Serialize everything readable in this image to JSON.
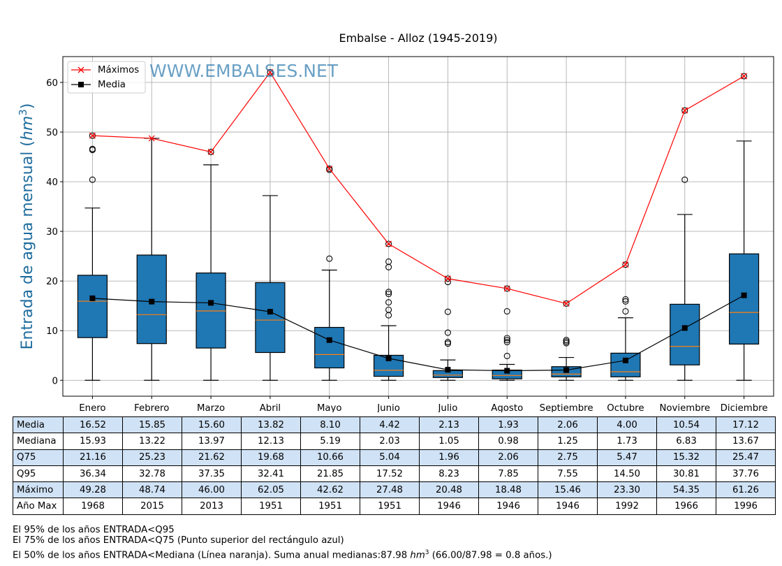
{
  "chart_data": {
    "type": "box",
    "title": "Embalse - Alloz (1945-2019)",
    "watermark": "WWW.EMBALSES.NET",
    "ylabel": "Entrada de agua mensual (hm³)",
    "ylabel_main": "Entrada de agua mensual (",
    "ylabel_unit": "hm",
    "ylabel_sup": "3",
    "ylabel_close": ")",
    "ylim": [
      -3.2,
      65.2
    ],
    "yticks": [
      0,
      10,
      20,
      30,
      40,
      50,
      60
    ],
    "grid": true,
    "legend": {
      "placement": "top-left",
      "entries": [
        {
          "label": "Máximos",
          "color": "#ff0000",
          "marker": "x"
        },
        {
          "label": "Media",
          "color": "#000000",
          "marker": "square"
        }
      ]
    },
    "categories": [
      "Enero",
      "Febrero",
      "Marzo",
      "Abril",
      "Mayo",
      "Junio",
      "Julio",
      "Agosto",
      "Septiembre",
      "Octubre",
      "Noviembre",
      "Diciembre"
    ],
    "box_color": "#1f77b4",
    "median_color": "#ff7f0e",
    "boxes": [
      {
        "whislo": 0,
        "q1": 8.6,
        "med": 15.93,
        "q3": 21.16,
        "whishi": 34.7,
        "fliers": [
          40.4,
          46.4,
          46.6,
          49.28
        ]
      },
      {
        "whislo": 0,
        "q1": 7.4,
        "med": 13.22,
        "q3": 25.23,
        "whishi": 48.74,
        "fliers": []
      },
      {
        "whislo": 0,
        "q1": 6.5,
        "med": 13.97,
        "q3": 21.62,
        "whishi": 43.4,
        "fliers": [
          46.0
        ]
      },
      {
        "whislo": 0,
        "q1": 5.6,
        "med": 12.13,
        "q3": 19.68,
        "whishi": 37.2,
        "fliers": [
          62.05
        ]
      },
      {
        "whislo": 0,
        "q1": 2.5,
        "med": 5.19,
        "q3": 10.66,
        "whishi": 22.2,
        "fliers": [
          24.5,
          42.4,
          42.62
        ]
      },
      {
        "whislo": 0,
        "q1": 0.8,
        "med": 2.03,
        "q3": 5.04,
        "whishi": 11.0,
        "fliers": [
          13.1,
          14.2,
          15.7,
          17.4,
          17.8,
          22.8,
          23.9,
          27.48
        ]
      },
      {
        "whislo": 0,
        "q1": 0.56,
        "med": 1.05,
        "q3": 1.96,
        "whishi": 4.1,
        "fliers": [
          7.4,
          7.7,
          9.6,
          13.8,
          19.8,
          20.48
        ]
      },
      {
        "whislo": 0,
        "q1": 0.3,
        "med": 0.98,
        "q3": 2.06,
        "whishi": 3.2,
        "fliers": [
          4.9,
          7.7,
          8.1,
          8.5,
          13.9,
          18.48
        ]
      },
      {
        "whislo": 0,
        "q1": 0.7,
        "med": 1.25,
        "q3": 2.75,
        "whishi": 4.6,
        "fliers": [
          7.5,
          7.8,
          8.1,
          15.46
        ]
      },
      {
        "whislo": 0,
        "q1": 0.7,
        "med": 1.73,
        "q3": 5.47,
        "whishi": 12.6,
        "fliers": [
          13.9,
          15.9,
          16.3,
          23.3
        ]
      },
      {
        "whislo": 0,
        "q1": 3.1,
        "med": 6.83,
        "q3": 15.32,
        "whishi": 33.4,
        "fliers": [
          40.4,
          54.35
        ]
      },
      {
        "whislo": 0,
        "q1": 7.3,
        "med": 13.67,
        "q3": 25.47,
        "whishi": 48.2,
        "fliers": [
          61.26
        ]
      }
    ],
    "series": [
      {
        "name": "Máximos",
        "color": "#ff0000",
        "values": [
          49.28,
          48.74,
          46.0,
          62.05,
          42.62,
          27.48,
          20.48,
          18.48,
          15.46,
          23.3,
          54.35,
          61.26
        ]
      },
      {
        "name": "Media",
        "color": "#000000",
        "values": [
          16.52,
          15.85,
          15.6,
          13.82,
          8.1,
          4.42,
          2.13,
          1.93,
          2.06,
          4.0,
          10.54,
          17.12
        ]
      }
    ]
  },
  "table": {
    "rows": [
      {
        "label": "Media",
        "highlight": true,
        "values": [
          "16.52",
          "15.85",
          "15.60",
          "13.82",
          "8.10",
          "4.42",
          "2.13",
          "1.93",
          "2.06",
          "4.00",
          "10.54",
          "17.12"
        ]
      },
      {
        "label": "Mediana",
        "highlight": false,
        "values": [
          "15.93",
          "13.22",
          "13.97",
          "12.13",
          "5.19",
          "2.03",
          "1.05",
          "0.98",
          "1.25",
          "1.73",
          "6.83",
          "13.67"
        ]
      },
      {
        "label": "Q75",
        "highlight": true,
        "values": [
          "21.16",
          "25.23",
          "21.62",
          "19.68",
          "10.66",
          "5.04",
          "1.96",
          "2.06",
          "2.75",
          "5.47",
          "15.32",
          "25.47"
        ]
      },
      {
        "label": "Q95",
        "highlight": false,
        "values": [
          "36.34",
          "32.78",
          "37.35",
          "32.41",
          "21.85",
          "17.52",
          "8.23",
          "7.85",
          "7.55",
          "14.50",
          "30.81",
          "37.76"
        ]
      },
      {
        "label": "Máximo",
        "highlight": true,
        "values": [
          "49.28",
          "48.74",
          "46.00",
          "62.05",
          "42.62",
          "27.48",
          "20.48",
          "18.48",
          "15.46",
          "23.30",
          "54.35",
          "61.26"
        ]
      },
      {
        "label": "Año Max",
        "highlight": false,
        "values": [
          "1968",
          "2015",
          "2013",
          "1951",
          "1951",
          "1951",
          "1946",
          "1946",
          "1946",
          "1992",
          "1966",
          "1996"
        ]
      }
    ]
  },
  "notes": {
    "line1": "El 95% de los años ENTRADA<Q95",
    "line2": "El 75% de los años ENTRADA<Q75 (Punto superior del rectángulo azul)",
    "line3_pre": "El 50% de los años ENTRADA<Mediana (Línea naranja). Suma anual medianas:87.98 ",
    "line3_unit": "hm",
    "line3_sup": "3",
    "line3_post": " (66.00/87.98 = 0.8 años.)"
  }
}
